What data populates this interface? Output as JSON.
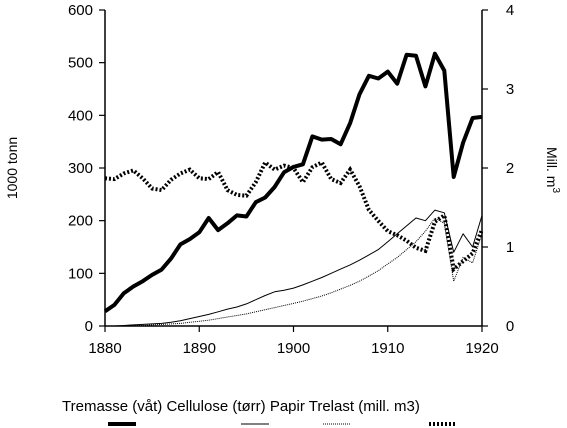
{
  "chart_data": {
    "type": "line",
    "xlabel": "",
    "ylabel": "1000 tonn",
    "ylabel_right_prefix": "Mill. m",
    "ylabel_right_sup": "3",
    "xlim": [
      1880,
      1920
    ],
    "ylim": [
      0,
      600
    ],
    "ylim_right": [
      0,
      4
    ],
    "x_ticks": [
      "1880",
      "1890",
      "1900",
      "1910",
      "1920"
    ],
    "y_ticks_left": [
      "0",
      "100",
      "200",
      "300",
      "400",
      "500",
      "600"
    ],
    "y_ticks_right": [
      "0",
      "1",
      "2",
      "3",
      "4"
    ],
    "grid": false,
    "legend_placement": "bottom",
    "x": [
      1880,
      1881,
      1882,
      1883,
      1884,
      1885,
      1886,
      1887,
      1888,
      1889,
      1890,
      1891,
      1892,
      1893,
      1894,
      1895,
      1896,
      1897,
      1898,
      1899,
      1900,
      1901,
      1902,
      1903,
      1904,
      1905,
      1906,
      1907,
      1908,
      1909,
      1910,
      1911,
      1912,
      1913,
      1914,
      1915,
      1916,
      1917,
      1918,
      1919,
      1920
    ],
    "series": [
      {
        "name": "Tremasse (våt)",
        "axis": "left",
        "style": "thick",
        "values": [
          28,
          40,
          62,
          75,
          85,
          97,
          107,
          128,
          155,
          165,
          178,
          205,
          182,
          195,
          210,
          208,
          235,
          244,
          264,
          292,
          302,
          307,
          360,
          354,
          355,
          345,
          385,
          440,
          475,
          470,
          483,
          460,
          515,
          513,
          455,
          517,
          485,
          283,
          348,
          395,
          397
        ]
      },
      {
        "name": "Cellulose (tørr)",
        "axis": "left",
        "style": "thin",
        "values": [
          0,
          0,
          1,
          2,
          3,
          4,
          5,
          7,
          10,
          14,
          18,
          22,
          27,
          32,
          36,
          42,
          50,
          58,
          65,
          68,
          72,
          78,
          85,
          92,
          100,
          108,
          116,
          125,
          135,
          145,
          160,
          175,
          190,
          205,
          200,
          220,
          215,
          140,
          175,
          150,
          210
        ]
      },
      {
        "name": "Papir",
        "axis": "left",
        "style": "dotted",
        "values": [
          0,
          0,
          0,
          1,
          1,
          2,
          3,
          4,
          5,
          7,
          9,
          11,
          14,
          17,
          20,
          23,
          27,
          31,
          35,
          39,
          43,
          47,
          52,
          57,
          63,
          70,
          77,
          85,
          95,
          105,
          118,
          130,
          145,
          160,
          180,
          205,
          195,
          85,
          130,
          120,
          175
        ]
      },
      {
        "name": "Trelast (mill. m3)",
        "axis": "right",
        "style": "thick-dotted",
        "values": [
          1.87,
          1.86,
          1.93,
          1.97,
          1.87,
          1.74,
          1.72,
          1.85,
          1.93,
          1.98,
          1.87,
          1.86,
          1.95,
          1.72,
          1.66,
          1.65,
          1.82,
          2.07,
          1.98,
          2.03,
          2.0,
          1.82,
          2.01,
          2.07,
          1.86,
          1.81,
          1.98,
          1.77,
          1.47,
          1.33,
          1.2,
          1.15,
          1.08,
          0.99,
          0.95,
          1.32,
          1.4,
          0.72,
          0.82,
          0.92,
          1.22
        ]
      }
    ]
  }
}
